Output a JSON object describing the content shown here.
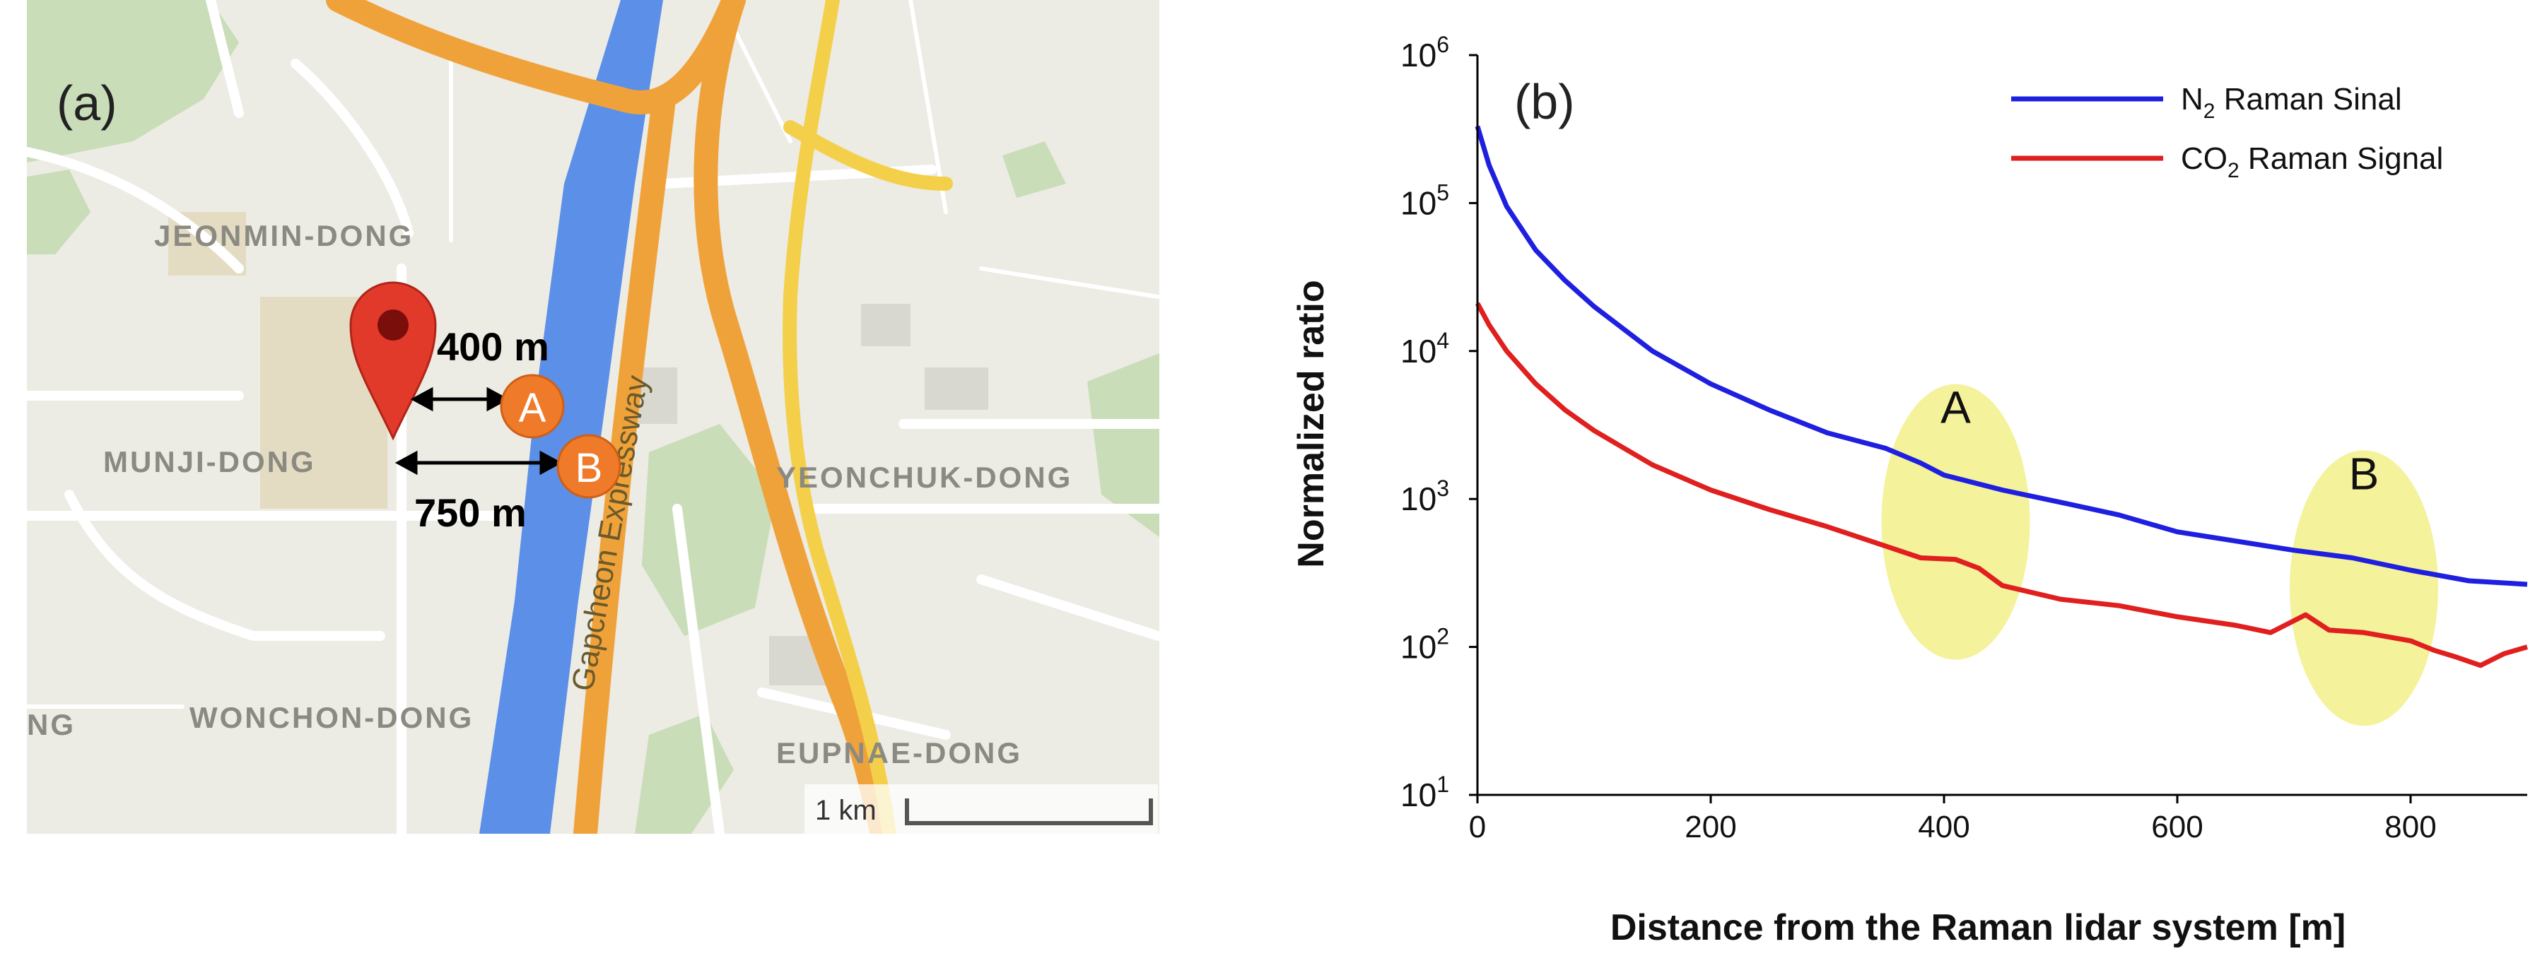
{
  "map": {
    "panel_label": "(a)",
    "districts": {
      "jeonmin": "JEONMIN-DONG",
      "munji": "MUNJI-DONG",
      "wonchon": "WONCHON-DONG",
      "yeonchuk": "YEONCHUK-DONG",
      "eupnae": "EUPNAE-DONG",
      "ng": "NG"
    },
    "expressway": "Gapcheon Expressway",
    "markers": {
      "a": "A",
      "b": "B"
    },
    "distances": {
      "a": "400 m",
      "b": "750 m"
    },
    "scale": "1 km",
    "colors": {
      "river": "#5b8fe8",
      "expressway": "#f0a23a",
      "road_yellow": "#f4d04a",
      "pin": "#e23a2a",
      "marker": "#ef7a2a",
      "park": "#c9ddb8"
    },
    "icons": {
      "pin": "map-pin-icon",
      "arrow": "double-arrow-icon"
    }
  },
  "chart_data": {
    "type": "line",
    "panel_label": "(b)",
    "xlabel": "Distance from the Raman lidar system [m]",
    "ylabel": "Normalized ratio",
    "xlim": [
      0,
      900
    ],
    "ylim": [
      10,
      1000000
    ],
    "yscale": "log",
    "xticks": [
      0,
      200,
      400,
      600,
      800
    ],
    "yticks": [
      {
        "value": 10,
        "base": "10",
        "exp": "1"
      },
      {
        "value": 100,
        "base": "10",
        "exp": "2"
      },
      {
        "value": 1000,
        "base": "10",
        "exp": "3"
      },
      {
        "value": 10000,
        "base": "10",
        "exp": "4"
      },
      {
        "value": 100000,
        "base": "10",
        "exp": "5"
      },
      {
        "value": 1000000,
        "base": "10",
        "exp": "6"
      }
    ],
    "legend_position": "top-right",
    "series": [
      {
        "name_prefix": "N",
        "name_sub": "2",
        "name_suffix": " Raman Sinal",
        "color": "#1f1fe0",
        "x": [
          0,
          10,
          25,
          50,
          75,
          100,
          150,
          200,
          250,
          300,
          350,
          380,
          400,
          450,
          500,
          550,
          600,
          650,
          700,
          750,
          800,
          850,
          900
        ],
        "y": [
          330000,
          180000,
          95000,
          48000,
          30000,
          20000,
          10000,
          6000,
          4000,
          2800,
          2200,
          1750,
          1450,
          1150,
          950,
          780,
          600,
          520,
          450,
          400,
          330,
          280,
          265
        ]
      },
      {
        "name_prefix": "CO",
        "name_sub": "2",
        "name_suffix": " Raman Signal",
        "color": "#e01f1f",
        "x": [
          0,
          10,
          25,
          50,
          75,
          100,
          150,
          200,
          250,
          300,
          350,
          380,
          410,
          430,
          450,
          500,
          550,
          600,
          650,
          680,
          710,
          730,
          760,
          800,
          820,
          840,
          860,
          880,
          900
        ],
        "y": [
          21000,
          15000,
          10000,
          6000,
          4000,
          2900,
          1700,
          1150,
          850,
          650,
          480,
          400,
          390,
          340,
          260,
          210,
          190,
          160,
          140,
          125,
          165,
          130,
          125,
          110,
          95,
          85,
          75,
          90,
          100
        ]
      }
    ],
    "highlights": [
      {
        "label": "A",
        "x": 410,
        "y": 700
      },
      {
        "label": "B",
        "x": 760,
        "y": 250
      }
    ],
    "highlight_color": "#f2f08a"
  }
}
